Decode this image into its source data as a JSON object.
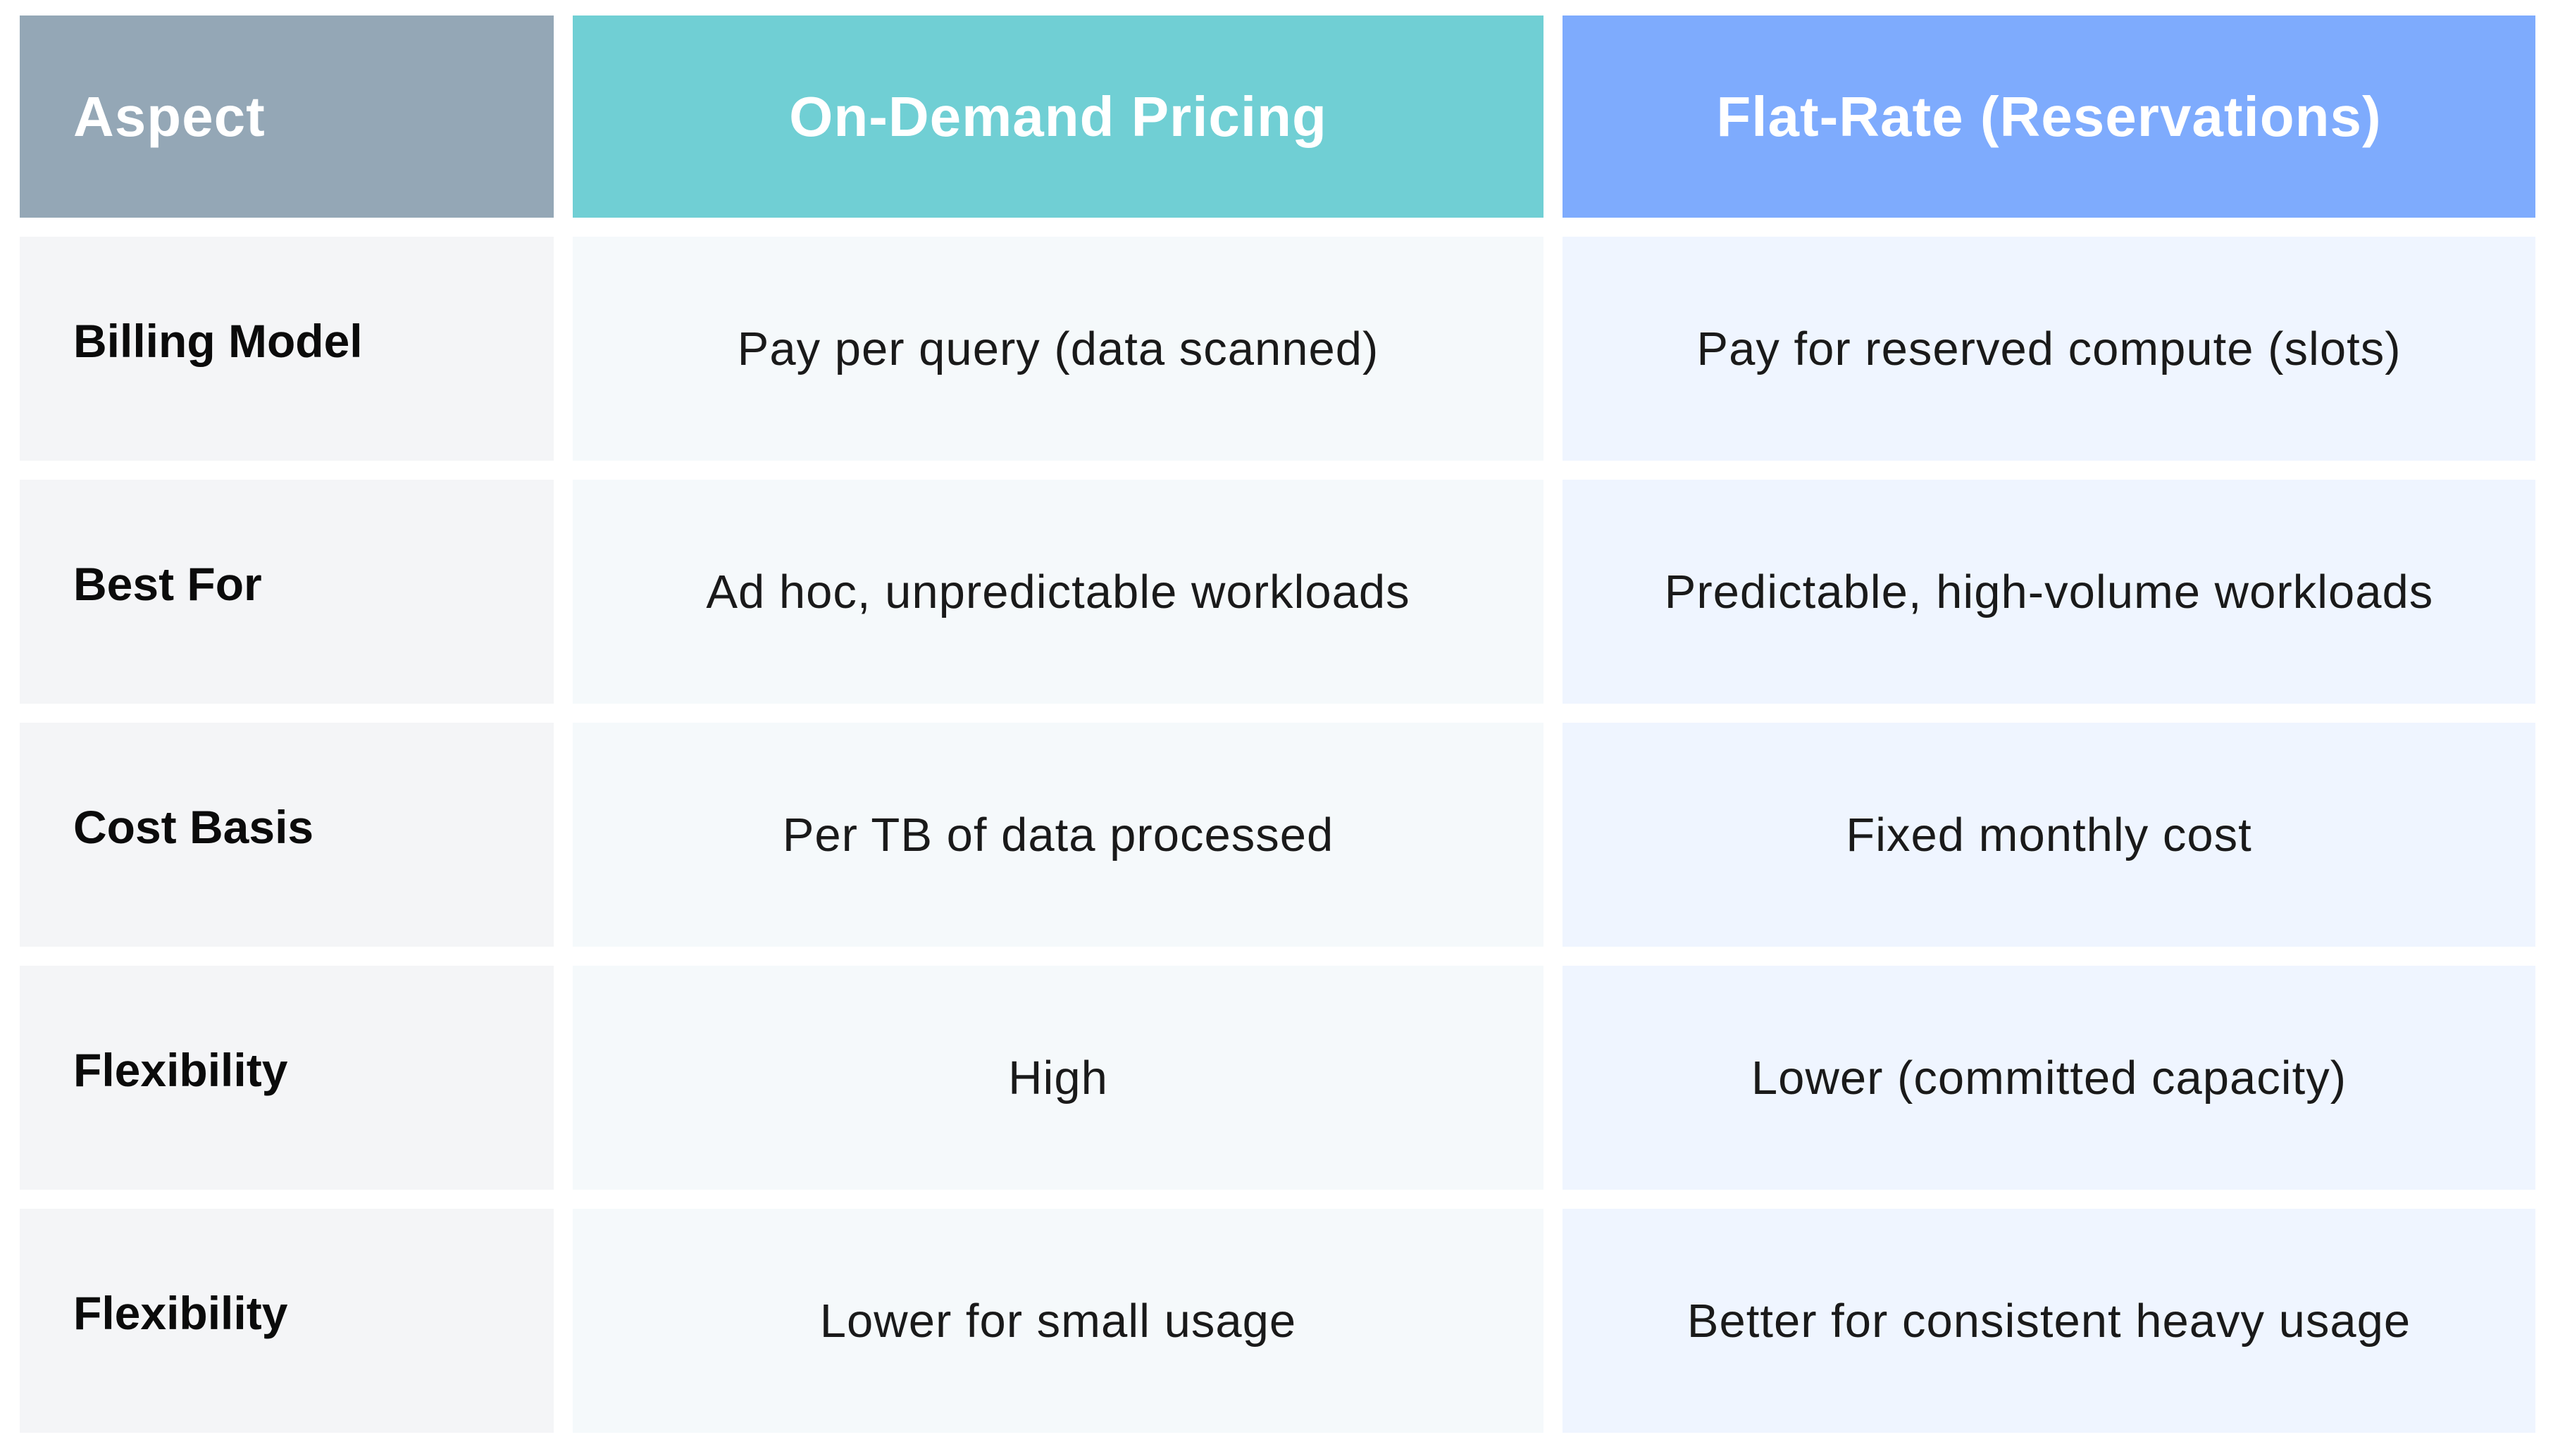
{
  "table": {
    "headers": {
      "aspect": "Aspect",
      "on_demand": "On-Demand Pricing",
      "flat_rate": "Flat-Rate (Reservations)"
    },
    "rows": [
      {
        "aspect": "Billing Model",
        "on_demand": "Pay per query (data scanned)",
        "flat_rate": "Pay for reserved compute (slots)"
      },
      {
        "aspect": "Best For",
        "on_demand": "Ad hoc, unpredictable workloads",
        "flat_rate": "Predictable, high-volume workloads"
      },
      {
        "aspect": "Cost Basis",
        "on_demand": "Per TB of data processed",
        "flat_rate": "Fixed monthly cost"
      },
      {
        "aspect": "Flexibility",
        "on_demand": "High",
        "flat_rate": "Lower (committed capacity)"
      },
      {
        "aspect": "Flexibility",
        "on_demand": "Lower for small usage",
        "flat_rate": "Better for consistent heavy usage"
      }
    ]
  },
  "colors": {
    "aspect_header": "#94a7b6",
    "on_demand_header": "#70cfd4",
    "flat_rate_header": "#7eabfd",
    "aspect_cell": "#f4f5f7",
    "on_demand_cell": "#f5f9fb",
    "flat_rate_cell": "#eff5ff"
  }
}
